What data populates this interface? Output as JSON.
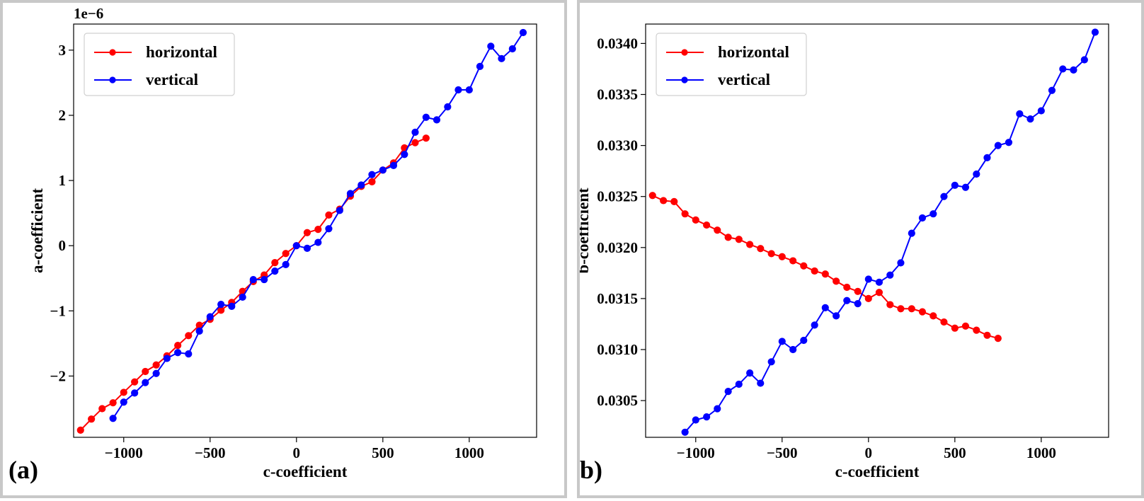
{
  "chart_data": [
    {
      "type": "line",
      "panel_label": "(a)",
      "xlabel": "c-coefficient",
      "ylabel": "a-coefficient",
      "y_offset_label": "1e−6",
      "xlim": [
        -1290,
        1390
      ],
      "ylim": [
        -2.94,
        3.4
      ],
      "x_ticks": [
        -1000,
        -500,
        0,
        500,
        1000
      ],
      "x_tick_labels": [
        "−1000",
        "−500",
        "0",
        "500",
        "1000"
      ],
      "y_ticks": [
        -2,
        -1,
        0,
        1,
        2,
        3
      ],
      "y_tick_labels": [
        "−2",
        "−1",
        "0",
        "1",
        "2",
        "3"
      ],
      "grid": false,
      "legend_position": "top-left",
      "series": [
        {
          "name": "horizontal",
          "color": "#ff0000",
          "x": [
            -1250,
            -1187,
            -1125,
            -1062,
            -1000,
            -937,
            -875,
            -812,
            -750,
            -687,
            -625,
            -562,
            -500,
            -437,
            -375,
            -312,
            -250,
            -187,
            -125,
            -62,
            0,
            62,
            125,
            187,
            250,
            312,
            375,
            437,
            500,
            562,
            625,
            687,
            750
          ],
          "y": [
            -2.83,
            -2.66,
            -2.5,
            -2.41,
            -2.25,
            -2.09,
            -1.93,
            -1.83,
            -1.69,
            -1.53,
            -1.38,
            -1.22,
            -1.13,
            -0.99,
            -0.87,
            -0.7,
            -0.55,
            -0.45,
            -0.26,
            -0.12,
            0.0,
            0.2,
            0.25,
            0.47,
            0.56,
            0.76,
            0.91,
            0.98,
            1.16,
            1.27,
            1.5,
            1.58,
            1.65
          ]
        },
        {
          "name": "vertical",
          "color": "#0000ff",
          "x": [
            -1062,
            -1000,
            -937,
            -875,
            -812,
            -750,
            -687,
            -625,
            -562,
            -500,
            -437,
            -375,
            -312,
            -250,
            -187,
            -125,
            -62,
            0,
            62,
            125,
            187,
            250,
            312,
            375,
            437,
            500,
            562,
            625,
            687,
            750,
            812,
            875,
            937,
            1000,
            1062,
            1125,
            1187,
            1250,
            1312
          ],
          "y": [
            -2.65,
            -2.4,
            -2.26,
            -2.1,
            -1.96,
            -1.73,
            -1.64,
            -1.66,
            -1.31,
            -1.09,
            -0.9,
            -0.93,
            -0.79,
            -0.52,
            -0.52,
            -0.39,
            -0.29,
            0.0,
            -0.04,
            0.05,
            0.26,
            0.54,
            0.8,
            0.93,
            1.09,
            1.16,
            1.23,
            1.4,
            1.74,
            1.97,
            1.93,
            2.13,
            2.39,
            2.39,
            2.75,
            3.06,
            2.87,
            3.02,
            3.27
          ]
        }
      ]
    },
    {
      "type": "line",
      "panel_label": "(b)",
      "xlabel": "c-coefficient",
      "ylabel": "b-coefficient",
      "xlim": [
        -1290,
        1390
      ],
      "ylim": [
        0.03014,
        0.03419
      ],
      "x_ticks": [
        -1000,
        -500,
        0,
        500,
        1000
      ],
      "x_tick_labels": [
        "−1000",
        "−500",
        "0",
        "500",
        "1000"
      ],
      "y_ticks": [
        0.0305,
        0.031,
        0.0315,
        0.032,
        0.0325,
        0.033,
        0.0335,
        0.034
      ],
      "y_tick_labels": [
        "0.0305",
        "0.0310",
        "0.0315",
        "0.0320",
        "0.0325",
        "0.0330",
        "0.0335",
        "0.0340"
      ],
      "grid": false,
      "legend_position": "top-left",
      "series": [
        {
          "name": "horizontal",
          "color": "#ff0000",
          "x": [
            -1250,
            -1187,
            -1125,
            -1062,
            -1000,
            -937,
            -875,
            -812,
            -750,
            -687,
            -625,
            -562,
            -500,
            -437,
            -375,
            -312,
            -250,
            -187,
            -125,
            -62,
            0,
            62,
            125,
            187,
            250,
            312,
            375,
            437,
            500,
            562,
            625,
            687,
            750
          ],
          "y": [
            0.03251,
            0.03246,
            0.03245,
            0.03233,
            0.03227,
            0.03222,
            0.03217,
            0.0321,
            0.03208,
            0.03203,
            0.03199,
            0.03194,
            0.03191,
            0.03187,
            0.03182,
            0.03177,
            0.03174,
            0.03167,
            0.03161,
            0.03157,
            0.0315,
            0.03156,
            0.03144,
            0.0314,
            0.0314,
            0.03137,
            0.03133,
            0.03127,
            0.03121,
            0.03123,
            0.03119,
            0.03114,
            0.03111
          ]
        },
        {
          "name": "vertical",
          "color": "#0000ff",
          "x": [
            -1062,
            -1000,
            -937,
            -875,
            -812,
            -750,
            -687,
            -625,
            -562,
            -500,
            -437,
            -375,
            -312,
            -250,
            -187,
            -125,
            -62,
            0,
            62,
            125,
            187,
            250,
            312,
            375,
            437,
            500,
            562,
            625,
            687,
            750,
            812,
            875,
            937,
            1000,
            1062,
            1125,
            1187,
            1250,
            1312
          ],
          "y": [
            0.03019,
            0.03031,
            0.03034,
            0.03042,
            0.03059,
            0.03066,
            0.03077,
            0.03067,
            0.03088,
            0.03108,
            0.031,
            0.03109,
            0.03124,
            0.03141,
            0.03133,
            0.03148,
            0.03145,
            0.03169,
            0.03166,
            0.03173,
            0.03185,
            0.03214,
            0.03229,
            0.03233,
            0.0325,
            0.03261,
            0.03259,
            0.03272,
            0.03288,
            0.033,
            0.03303,
            0.03331,
            0.03326,
            0.03334,
            0.03354,
            0.03375,
            0.03374,
            0.03384,
            0.03411
          ]
        }
      ]
    }
  ]
}
